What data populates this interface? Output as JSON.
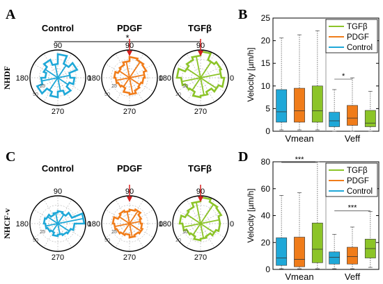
{
  "panels": {
    "A": {
      "letter": "A",
      "rowlabel": "NHDF",
      "sig": "*",
      "titles": [
        "Control",
        "PDGF",
        "TGFβ"
      ]
    },
    "C": {
      "letter": "C",
      "rowlabel": "NHCF-v",
      "titles": [
        "Control",
        "PDGF",
        "TGFβ"
      ]
    },
    "B": {
      "letter": "B"
    },
    "D": {
      "letter": "D"
    }
  },
  "polar_angles": {
    "a90": "90",
    "a0": "0",
    "a180": "180",
    "a270": "270"
  },
  "colors": {
    "control": "#1fa8d8",
    "pdgf": "#f07c1a",
    "tgfb": "#8cc428",
    "arrow": "#d42020",
    "axis": "#000000",
    "grid": "#9a9a9a"
  },
  "chart_data": [
    {
      "type": "polar",
      "panel": "A",
      "radial_ticks": {
        "Control": [
          "25",
          "50"
        ],
        "PDGF": [
          "25",
          "50"
        ],
        "TGFβ": [
          "10",
          "20"
        ]
      },
      "series": [
        {
          "name": "Control",
          "color": "#1fa8d8"
        },
        {
          "name": "PDGF",
          "color": "#f07c1a"
        },
        {
          "name": "TGFβ",
          "color": "#8cc428"
        }
      ]
    },
    {
      "type": "polar",
      "panel": "C",
      "radial_ticks": {
        "Control": [
          "25",
          "50"
        ],
        "PDGF": [
          "25",
          "50"
        ],
        "TGFβ": [
          "10",
          "20"
        ]
      },
      "series": [
        {
          "name": "Control",
          "color": "#1fa8d8"
        },
        {
          "name": "PDGF",
          "color": "#f07c1a"
        },
        {
          "name": "TGFβ",
          "color": "#8cc428"
        }
      ]
    },
    {
      "type": "box",
      "panel": "B",
      "ylabel": "Velocity [µm/h]",
      "ylim": [
        0,
        25
      ],
      "yticks": [
        0,
        5,
        10,
        15,
        20,
        25
      ],
      "groups": [
        "Vmean",
        "Veff"
      ],
      "legend": [
        "TGFβ",
        "PDGF",
        "Control"
      ],
      "annotations": [
        {
          "text": "*",
          "group": "Veff"
        }
      ],
      "series": [
        {
          "name": "Control",
          "color": "#1fa8d8",
          "boxes": [
            {
              "group": "Vmean",
              "min": 0.3,
              "q1": 2,
              "median": 4.3,
              "q3": 9.2,
              "max": 20.6
            },
            {
              "group": "Veff",
              "min": 0,
              "q1": 1,
              "median": 2.3,
              "q3": 4.2,
              "max": 9.2
            }
          ]
        },
        {
          "name": "PDGF",
          "color": "#f07c1a",
          "boxes": [
            {
              "group": "Vmean",
              "min": 0.3,
              "q1": 2,
              "median": 4.5,
              "q3": 9.5,
              "max": 21.3
            },
            {
              "group": "Veff",
              "min": 0,
              "q1": 1.3,
              "median": 2.9,
              "q3": 5.7,
              "max": 11.8
            }
          ]
        },
        {
          "name": "TGFβ",
          "color": "#8cc428",
          "boxes": [
            {
              "group": "Vmean",
              "min": 0.3,
              "q1": 2,
              "median": 4.5,
              "q3": 10,
              "max": 22.2
            },
            {
              "group": "Veff",
              "min": 0,
              "q1": 1,
              "median": 1.8,
              "q3": 4.6,
              "max": 8.8
            }
          ]
        }
      ]
    },
    {
      "type": "box",
      "panel": "D",
      "ylabel": "Velocity [µm/h]",
      "ylim": [
        0,
        80
      ],
      "yticks": [
        0,
        20,
        40,
        60,
        80
      ],
      "groups": [
        "Vmean",
        "Veff"
      ],
      "legend": [
        "TGFβ",
        "PDGF",
        "Control"
      ],
      "annotations": [
        {
          "text": "***",
          "group": "Vmean"
        },
        {
          "text": "***",
          "group": "Veff"
        }
      ],
      "series": [
        {
          "name": "Control",
          "color": "#1fa8d8",
          "boxes": [
            {
              "group": "Vmean",
              "min": 0.5,
              "q1": 3,
              "median": 8.5,
              "q3": 23.5,
              "max": 55
            },
            {
              "group": "Veff",
              "min": 0.5,
              "q1": 4,
              "median": 9,
              "q3": 13,
              "max": 26
            }
          ]
        },
        {
          "name": "PDGF",
          "color": "#f07c1a",
          "boxes": [
            {
              "group": "Vmean",
              "min": 0.5,
              "q1": 2,
              "median": 7.5,
              "q3": 24,
              "max": 57
            },
            {
              "group": "Veff",
              "min": 0.5,
              "q1": 4,
              "median": 9.5,
              "q3": 16.5,
              "max": 31.5
            }
          ]
        },
        {
          "name": "TGFβ",
          "color": "#8cc428",
          "boxes": [
            {
              "group": "Vmean",
              "min": 0.5,
              "q1": 5,
              "median": 15,
              "q3": 34.5,
              "max": 80
            },
            {
              "group": "Veff",
              "min": 1.5,
              "q1": 8.5,
              "median": 15.5,
              "q3": 22.5,
              "max": 43
            }
          ]
        }
      ]
    }
  ]
}
